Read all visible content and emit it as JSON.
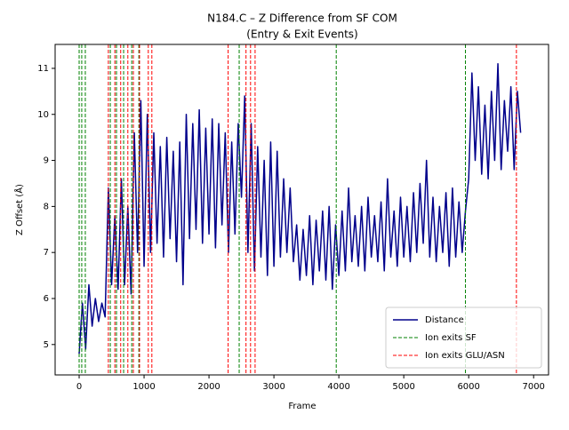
{
  "chart_data": {
    "type": "line",
    "title": [
      "N184.C – Z Difference from SF COM",
      "(Entry & Exit Events)"
    ],
    "x_label": "Frame",
    "y_label": "Z Offset (Å)",
    "xlim": [
      -370,
      7230
    ],
    "ylim": [
      4.34,
      11.52
    ],
    "xticks": [
      0,
      1000,
      2000,
      3000,
      4000,
      5000,
      6000,
      7000
    ],
    "yticks": [
      5,
      6,
      7,
      8,
      9,
      10,
      11
    ],
    "legend": "lower right",
    "series": [
      {
        "name": "Distance",
        "color": "#00008b",
        "x": [
          0,
          50,
          100,
          150,
          200,
          250,
          300,
          350,
          400,
          450,
          500,
          550,
          600,
          650,
          700,
          750,
          800,
          850,
          900,
          950,
          1000,
          1050,
          1100,
          1150,
          1200,
          1250,
          1300,
          1350,
          1400,
          1450,
          1500,
          1550,
          1600,
          1650,
          1700,
          1750,
          1800,
          1850,
          1900,
          1950,
          2000,
          2050,
          2100,
          2150,
          2200,
          2250,
          2300,
          2350,
          2400,
          2450,
          2500,
          2550,
          2600,
          2650,
          2700,
          2750,
          2800,
          2850,
          2900,
          2950,
          3000,
          3050,
          3100,
          3150,
          3200,
          3250,
          3300,
          3350,
          3400,
          3450,
          3500,
          3550,
          3600,
          3650,
          3700,
          3750,
          3800,
          3850,
          3900,
          3950,
          4000,
          4050,
          4100,
          4150,
          4200,
          4250,
          4300,
          4350,
          4400,
          4450,
          4500,
          4550,
          4600,
          4650,
          4700,
          4750,
          4800,
          4850,
          4900,
          4950,
          5000,
          5050,
          5100,
          5150,
          5200,
          5250,
          5300,
          5350,
          5400,
          5450,
          5500,
          5550,
          5600,
          5650,
          5700,
          5750,
          5800,
          5850,
          5900,
          5950,
          6000,
          6050,
          6100,
          6150,
          6200,
          6250,
          6300,
          6350,
          6400,
          6450,
          6500,
          6550,
          6600,
          6650,
          6700,
          6750,
          6800
        ],
        "values": [
          4.8,
          5.9,
          4.9,
          6.3,
          5.4,
          6.0,
          5.5,
          5.9,
          5.6,
          8.4,
          6.3,
          7.8,
          6.2,
          8.6,
          6.3,
          8.0,
          6.1,
          9.6,
          7.0,
          10.3,
          6.7,
          10.0,
          7.0,
          9.6,
          7.2,
          9.3,
          6.9,
          9.5,
          7.3,
          9.2,
          6.8,
          9.4,
          6.3,
          10.0,
          7.3,
          9.8,
          7.5,
          10.1,
          7.2,
          9.7,
          7.4,
          9.9,
          7.1,
          9.8,
          7.6,
          9.6,
          7.0,
          9.4,
          7.4,
          9.8,
          8.2,
          10.4,
          7.0,
          9.8,
          6.6,
          9.3,
          6.9,
          9.0,
          6.5,
          9.4,
          6.7,
          9.2,
          6.9,
          8.6,
          7.0,
          8.4,
          6.8,
          7.6,
          6.4,
          7.5,
          6.5,
          7.8,
          6.3,
          7.7,
          6.6,
          7.9,
          6.4,
          8.0,
          6.2,
          7.6,
          6.5,
          7.9,
          6.6,
          8.4,
          6.8,
          7.8,
          6.7,
          8.0,
          6.6,
          8.2,
          6.9,
          7.8,
          6.8,
          8.1,
          6.6,
          8.6,
          6.9,
          7.9,
          6.7,
          8.2,
          6.9,
          8.0,
          6.8,
          8.3,
          7.0,
          8.5,
          7.2,
          9.0,
          6.9,
          8.2,
          6.8,
          8.0,
          7.0,
          8.3,
          6.7,
          8.4,
          6.9,
          8.1,
          7.0,
          7.9,
          8.6,
          10.9,
          9.0,
          10.6,
          8.7,
          10.2,
          8.6,
          10.5,
          9.0,
          11.1,
          8.8,
          10.3,
          9.2,
          10.6,
          8.8,
          10.5,
          9.6
        ]
      }
    ],
    "vlines": [
      {
        "name": "Ion exits SF",
        "color": "#008000",
        "x": [
          0,
          40,
          95,
          480,
          575,
          685,
          810,
          920,
          2465,
          3960,
          5950
        ]
      },
      {
        "name": "Ion exits GLU/ASN",
        "color": "#ff0000",
        "x": [
          450,
          550,
          640,
          750,
          835,
          930,
          1065,
          1120,
          2295,
          2570,
          2640,
          2710,
          6735
        ]
      }
    ]
  }
}
